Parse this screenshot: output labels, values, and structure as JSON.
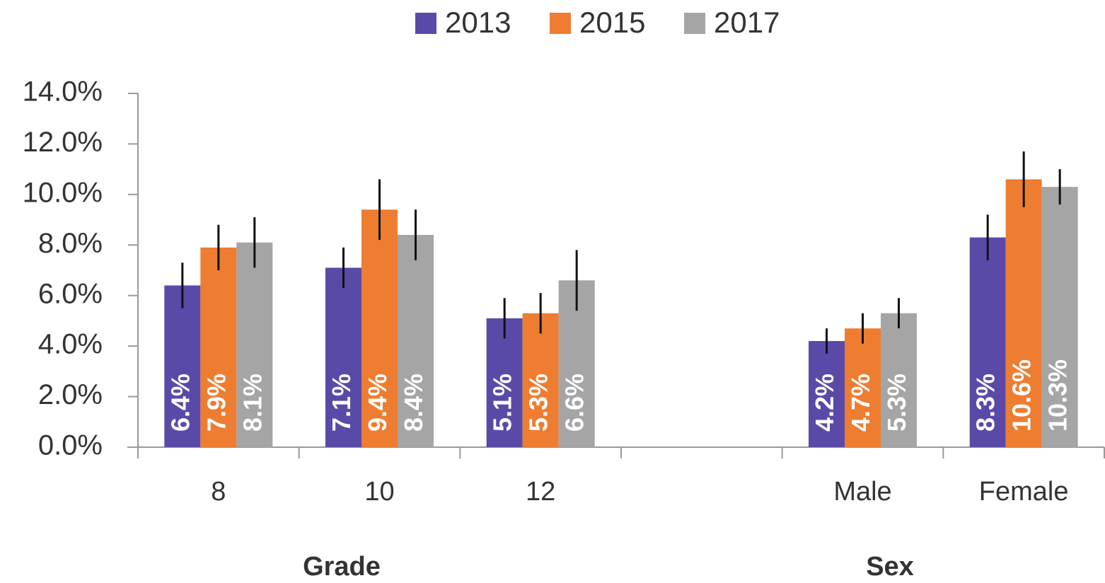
{
  "chart_data": {
    "type": "bar",
    "categories": [
      "8",
      "10",
      "12",
      null,
      "Male",
      "Female"
    ],
    "series": [
      {
        "name": "2013",
        "color": "#5a4aa8",
        "values": [
          6.4,
          7.1,
          5.1,
          null,
          4.2,
          8.3
        ],
        "errors": [
          0.9,
          0.8,
          0.8,
          null,
          0.5,
          0.9
        ],
        "value_labels": [
          "6.4%",
          "7.1%",
          "5.1%",
          null,
          "4.2%",
          "8.3%"
        ]
      },
      {
        "name": "2015",
        "color": "#ee7d31",
        "values": [
          7.9,
          9.4,
          5.3,
          null,
          4.7,
          10.6
        ],
        "errors": [
          0.9,
          1.2,
          0.8,
          null,
          0.6,
          1.1
        ],
        "value_labels": [
          "7.9%",
          "9.4%",
          "5.3%",
          null,
          "4.7%",
          "10.6%"
        ]
      },
      {
        "name": "2017",
        "color": "#a5a5a5",
        "values": [
          8.1,
          8.4,
          6.6,
          null,
          5.3,
          10.3
        ],
        "errors": [
          1.0,
          1.0,
          1.2,
          null,
          0.6,
          0.7
        ],
        "value_labels": [
          "8.1%",
          "8.4%",
          "6.6%",
          null,
          "5.3%",
          "10.3%"
        ]
      }
    ],
    "group_labels": [
      "Grade",
      "Sex"
    ],
    "ylim": [
      0,
      14
    ],
    "yticks": [
      {
        "value": 0,
        "label": "0.0%"
      },
      {
        "value": 2,
        "label": "2.0%"
      },
      {
        "value": 4,
        "label": "4.0%"
      },
      {
        "value": 6,
        "label": "6.0%"
      },
      {
        "value": 8,
        "label": "8.0%"
      },
      {
        "value": 10,
        "label": "10.0%"
      },
      {
        "value": 12,
        "label": "12.0%"
      },
      {
        "value": 14,
        "label": "14.0%"
      }
    ],
    "legend": "top",
    "grid": false
  }
}
